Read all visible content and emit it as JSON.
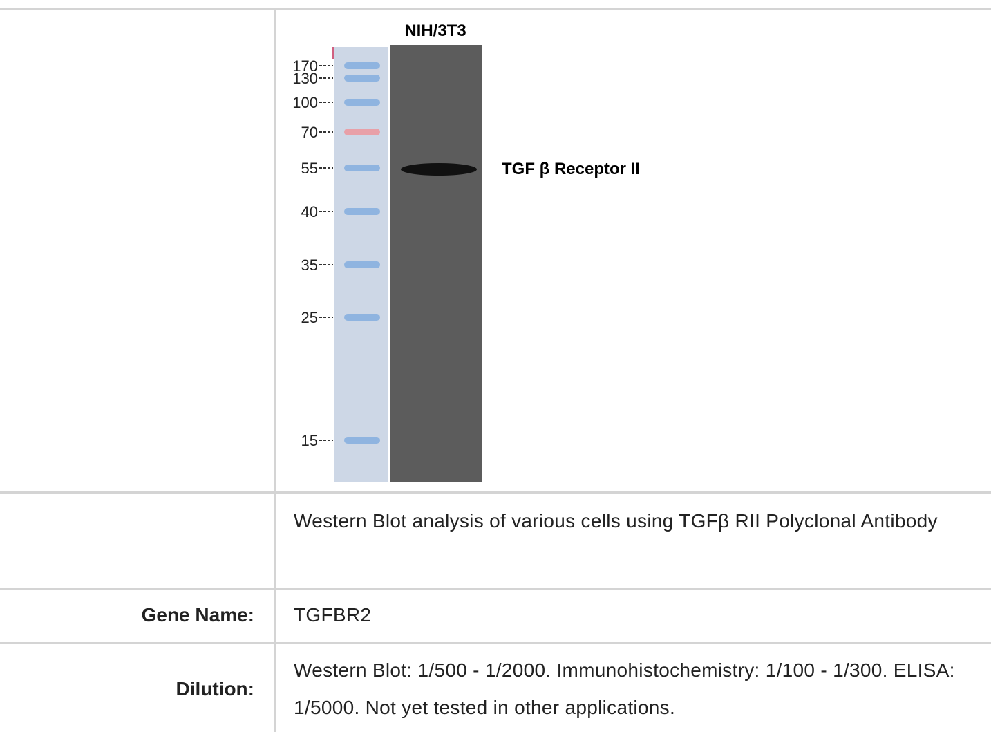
{
  "blot": {
    "lane_label": "NIH/3T3",
    "markers": [
      "170",
      "130",
      "100",
      "70",
      "55",
      "40",
      "35",
      "25",
      "15"
    ],
    "band_label": "TGF β Receptor II"
  },
  "table": {
    "caption": "Western Blot analysis of various cells using TGFβ RII Polyclonal Antibody",
    "rows": [
      [
        "Gene Name:",
        "TGFBR2"
      ],
      [
        "Dilution:",
        "Western Blot: 1/500 - 1/2000. Immunohistochemistry: 1/100 - 1/300. ELISA: 1/5000. Not yet tested in other applications."
      ]
    ]
  }
}
